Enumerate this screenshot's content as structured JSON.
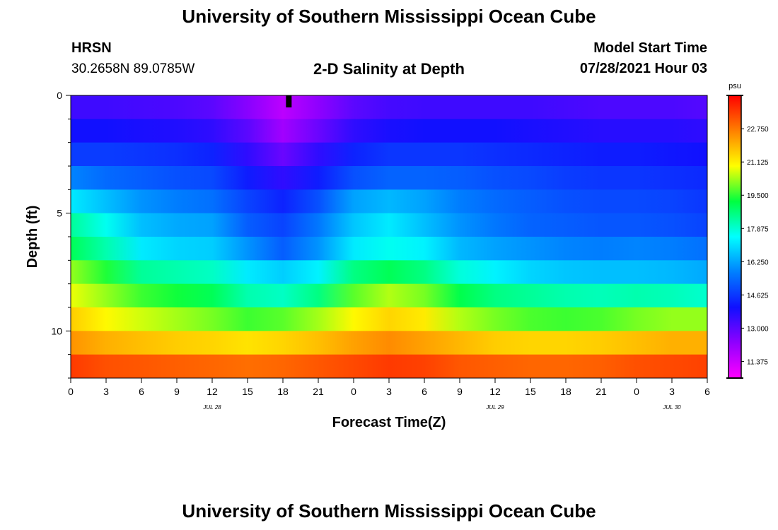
{
  "header": {
    "title": "University of Southern Mississippi Ocean Cube",
    "station": "HRSN",
    "coords": "30.2658N  89.0785W",
    "plot_title": "2-D Salinity at Depth",
    "model_label": "Model Start Time",
    "model_time": "07/28/2021 Hour 03"
  },
  "footer": {
    "title": "University of Southern Mississippi Ocean Cube"
  },
  "chart_data": {
    "type": "heatmap",
    "title": "2-D Salinity at Depth",
    "xlabel": "Forecast Time(Z)",
    "ylabel": "Depth (ft)",
    "units": "psu",
    "ylim": [
      0,
      12
    ],
    "xlim_hours": [
      0,
      54
    ],
    "x_tick_labels": [
      "0",
      "3",
      "6",
      "9",
      "12",
      "15",
      "18",
      "21",
      "0",
      "3",
      "6",
      "9",
      "12",
      "15",
      "18",
      "21",
      "0",
      "3",
      "6"
    ],
    "date_labels": [
      {
        "text": "JUL 28",
        "hour": 12
      },
      {
        "text": "JUL 29",
        "hour": 36
      },
      {
        "text": "JUL 30",
        "hour": 51
      }
    ],
    "y_tick_labels": [
      "0",
      "5",
      "10"
    ],
    "now_marker_hour": 18.5,
    "colorbar": {
      "min": 10.56,
      "max": 24.38,
      "tick_labels": [
        "11.375",
        "13.000",
        "14.625",
        "16.250",
        "17.875",
        "19.500",
        "21.125",
        "22.750"
      ],
      "colors": [
        "#ff00ff",
        "#9000ff",
        "#1010ff",
        "#0080ff",
        "#00ffff",
        "#00ff40",
        "#ffff00",
        "#ff8000",
        "#ff0000"
      ]
    },
    "depth_bins_ft": [
      0.5,
      1.5,
      2.5,
      3.5,
      4.5,
      5.5,
      6.5,
      7.5,
      8.5,
      9.5,
      10.5,
      11.5
    ],
    "time_hours": [
      0,
      3,
      6,
      9,
      12,
      15,
      18,
      21,
      24,
      27,
      30,
      33,
      36,
      39,
      42,
      45,
      48,
      51,
      54
    ],
    "values": [
      [
        13.4,
        13.4,
        13.3,
        13.2,
        13.0,
        12.4,
        11.6,
        12.3,
        13.0,
        13.3,
        13.4,
        13.4,
        13.4,
        13.4,
        13.3,
        13.2,
        13.2,
        13.2,
        13.1
      ],
      [
        14.0,
        14.0,
        13.9,
        13.8,
        13.6,
        13.0,
        12.0,
        12.8,
        13.6,
        13.9,
        14.0,
        14.0,
        14.0,
        13.9,
        13.8,
        13.7,
        13.7,
        13.7,
        13.6
      ],
      [
        14.7,
        14.7,
        14.6,
        14.5,
        14.3,
        13.6,
        12.8,
        13.6,
        14.3,
        14.6,
        14.6,
        14.6,
        14.5,
        14.4,
        14.3,
        14.2,
        14.2,
        14.1,
        14.0
      ],
      [
        15.8,
        15.4,
        15.2,
        15.0,
        14.9,
        14.2,
        13.6,
        14.2,
        15.0,
        15.3,
        15.3,
        15.2,
        15.0,
        14.9,
        14.7,
        14.6,
        14.6,
        14.5,
        14.4
      ],
      [
        17.2,
        16.6,
        16.0,
        15.7,
        15.5,
        14.8,
        14.3,
        15.0,
        16.2,
        16.5,
        16.2,
        15.7,
        15.4,
        15.2,
        15.0,
        14.9,
        14.9,
        14.8,
        14.6
      ],
      [
        18.4,
        17.6,
        16.6,
        16.3,
        16.2,
        15.2,
        14.8,
        15.6,
        16.7,
        17.2,
        16.6,
        16.0,
        15.6,
        15.3,
        15.2,
        15.1,
        15.1,
        15.0,
        14.8
      ],
      [
        19.0,
        18.2,
        17.2,
        16.9,
        16.8,
        16.0,
        15.2,
        16.0,
        17.2,
        17.6,
        17.3,
        16.5,
        16.2,
        16.0,
        15.8,
        15.7,
        15.8,
        15.7,
        15.5
      ],
      [
        20.2,
        19.4,
        18.4,
        18.2,
        18.0,
        17.2,
        16.8,
        17.3,
        18.6,
        19.0,
        18.6,
        17.8,
        17.3,
        16.9,
        16.7,
        16.6,
        16.6,
        16.5,
        16.3
      ],
      [
        20.8,
        20.2,
        19.6,
        19.3,
        19.0,
        18.2,
        18.0,
        18.6,
        19.8,
        20.4,
        20.0,
        19.1,
        18.6,
        18.4,
        18.2,
        18.1,
        18.2,
        18.1,
        17.9
      ],
      [
        21.6,
        21.0,
        20.6,
        20.3,
        20.0,
        19.6,
        19.8,
        20.3,
        21.0,
        21.5,
        21.2,
        20.4,
        20.0,
        19.7,
        19.6,
        19.7,
        20.0,
        20.2,
        20.2
      ],
      [
        22.4,
        22.0,
        21.8,
        21.6,
        21.5,
        21.3,
        21.5,
        21.8,
        22.2,
        22.5,
        22.2,
        21.9,
        21.6,
        21.5,
        21.5,
        21.6,
        21.8,
        22.0,
        22.0
      ],
      [
        23.6,
        23.3,
        23.2,
        23.1,
        23.0,
        22.9,
        23.0,
        23.2,
        23.4,
        23.6,
        23.5,
        23.2,
        23.1,
        23.0,
        23.0,
        23.1,
        23.3,
        23.4,
        23.5
      ]
    ]
  }
}
